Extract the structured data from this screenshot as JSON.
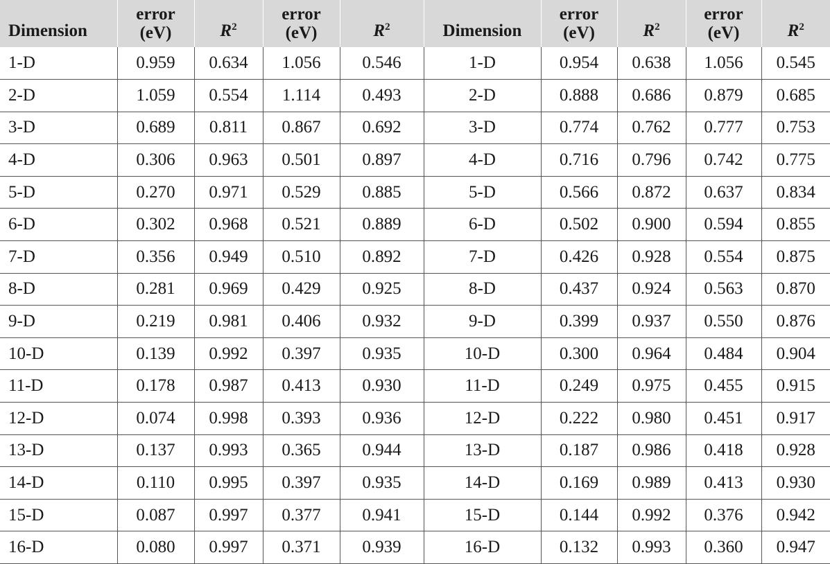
{
  "headers": {
    "dimension_left": "Dimension",
    "error_1_line1": "error",
    "error_1_line2": "(eV)",
    "r2_1_base": "R",
    "r2_1_exp": "2",
    "error_2_line1": "error",
    "error_2_line2": "(eV)",
    "r2_2_base": "R",
    "r2_2_exp": "2",
    "dimension_right": "Dimension",
    "error_3_line1": "error",
    "error_3_line2": "(eV)",
    "r2_3_base": "R",
    "r2_3_exp": "2",
    "error_4_line1": "error",
    "error_4_line2": "(eV)",
    "r2_4_base": "R",
    "r2_4_exp": "2"
  },
  "rows": [
    [
      "1-D",
      "0.959",
      "0.634",
      "1.056",
      "0.546",
      "1-D",
      "0.954",
      "0.638",
      "1.056",
      "0.545"
    ],
    [
      "2-D",
      "1.059",
      "0.554",
      "1.114",
      "0.493",
      "2-D",
      "0.888",
      "0.686",
      "0.879",
      "0.685"
    ],
    [
      "3-D",
      "0.689",
      "0.811",
      "0.867",
      "0.692",
      "3-D",
      "0.774",
      "0.762",
      "0.777",
      "0.753"
    ],
    [
      "4-D",
      "0.306",
      "0.963",
      "0.501",
      "0.897",
      "4-D",
      "0.716",
      "0.796",
      "0.742",
      "0.775"
    ],
    [
      "5-D",
      "0.270",
      "0.971",
      "0.529",
      "0.885",
      "5-D",
      "0.566",
      "0.872",
      "0.637",
      "0.834"
    ],
    [
      "6-D",
      "0.302",
      "0.968",
      "0.521",
      "0.889",
      "6-D",
      "0.502",
      "0.900",
      "0.594",
      "0.855"
    ],
    [
      "7-D",
      "0.356",
      "0.949",
      "0.510",
      "0.892",
      "7-D",
      "0.426",
      "0.928",
      "0.554",
      "0.875"
    ],
    [
      "8-D",
      "0.281",
      "0.969",
      "0.429",
      "0.925",
      "8-D",
      "0.437",
      "0.924",
      "0.563",
      "0.870"
    ],
    [
      "9-D",
      "0.219",
      "0.981",
      "0.406",
      "0.932",
      "9-D",
      "0.399",
      "0.937",
      "0.550",
      "0.876"
    ],
    [
      "10-D",
      "0.139",
      "0.992",
      "0.397",
      "0.935",
      "10-D",
      "0.300",
      "0.964",
      "0.484",
      "0.904"
    ],
    [
      "11-D",
      "0.178",
      "0.987",
      "0.413",
      "0.930",
      "11-D",
      "0.249",
      "0.975",
      "0.455",
      "0.915"
    ],
    [
      "12-D",
      "0.074",
      "0.998",
      "0.393",
      "0.936",
      "12-D",
      "0.222",
      "0.980",
      "0.451",
      "0.917"
    ],
    [
      "13-D",
      "0.137",
      "0.993",
      "0.365",
      "0.944",
      "13-D",
      "0.187",
      "0.986",
      "0.418",
      "0.928"
    ],
    [
      "14-D",
      "0.110",
      "0.995",
      "0.397",
      "0.935",
      "14-D",
      "0.169",
      "0.989",
      "0.413",
      "0.930"
    ],
    [
      "15-D",
      "0.087",
      "0.997",
      "0.377",
      "0.941",
      "15-D",
      "0.144",
      "0.992",
      "0.376",
      "0.942"
    ],
    [
      "16-D",
      "0.080",
      "0.997",
      "0.371",
      "0.939",
      "16-D",
      "0.132",
      "0.993",
      "0.360",
      "0.947"
    ]
  ]
}
